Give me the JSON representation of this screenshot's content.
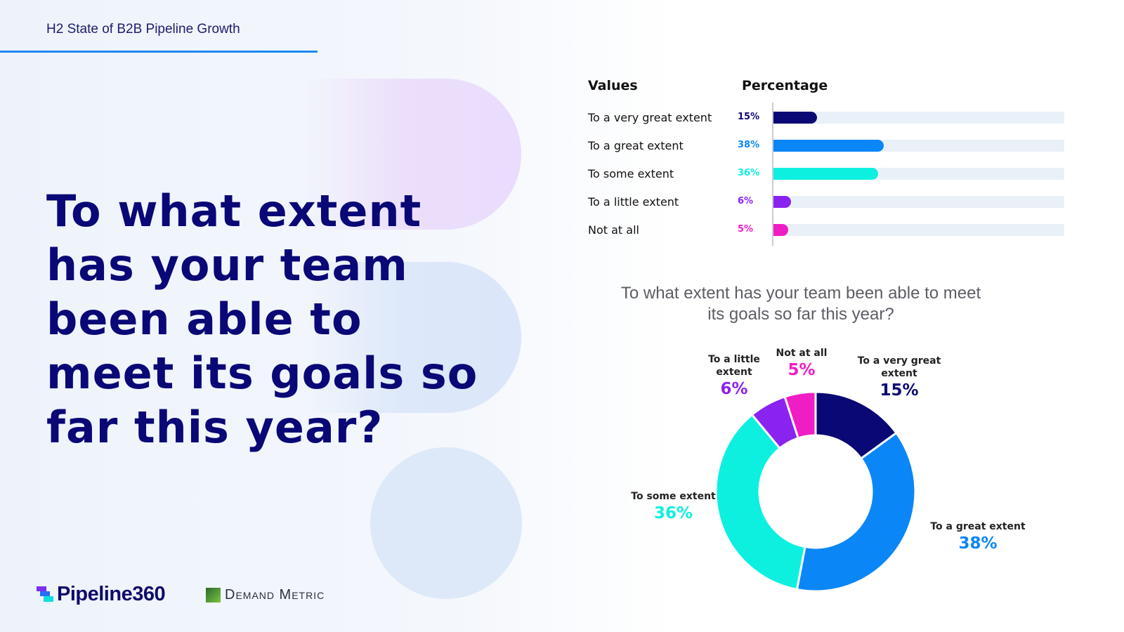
{
  "header": {
    "title": "H2 State of B2B Pipeline Growth"
  },
  "question": "To what extent has your team been able to meet its goals so far this year?",
  "logos": {
    "pipeline": "Pipeline360",
    "demand_metric": "Demand Metric"
  },
  "colors": {
    "very_great": "#0a0875",
    "great": "#0b86f7",
    "some": "#0df0e0",
    "little": "#8a22f0",
    "not_at_all": "#f01cc4",
    "title_navy": "#0a0876"
  },
  "chart_data": [
    {
      "type": "bar",
      "headers": {
        "values": "Values",
        "percentage": "Percentage"
      },
      "categories": [
        "To a very great extent",
        "To a great extent",
        "To some extent",
        "To a little extent",
        "Not at all"
      ],
      "labels": [
        "15%",
        "38%",
        "36%",
        "6%",
        "5%"
      ],
      "values": [
        15,
        38,
        36,
        6,
        5
      ],
      "xlim": [
        0,
        100
      ]
    },
    {
      "type": "pie",
      "title": "To what extent has your team been able to meet its goals so far this year?",
      "categories": [
        "To a very great extent",
        "To a great extent",
        "To some extent",
        "To a little extent",
        "Not at all"
      ],
      "labels": [
        "15%",
        "38%",
        "36%",
        "6%",
        "5%"
      ],
      "values": [
        15,
        38,
        36,
        6,
        5
      ]
    }
  ]
}
